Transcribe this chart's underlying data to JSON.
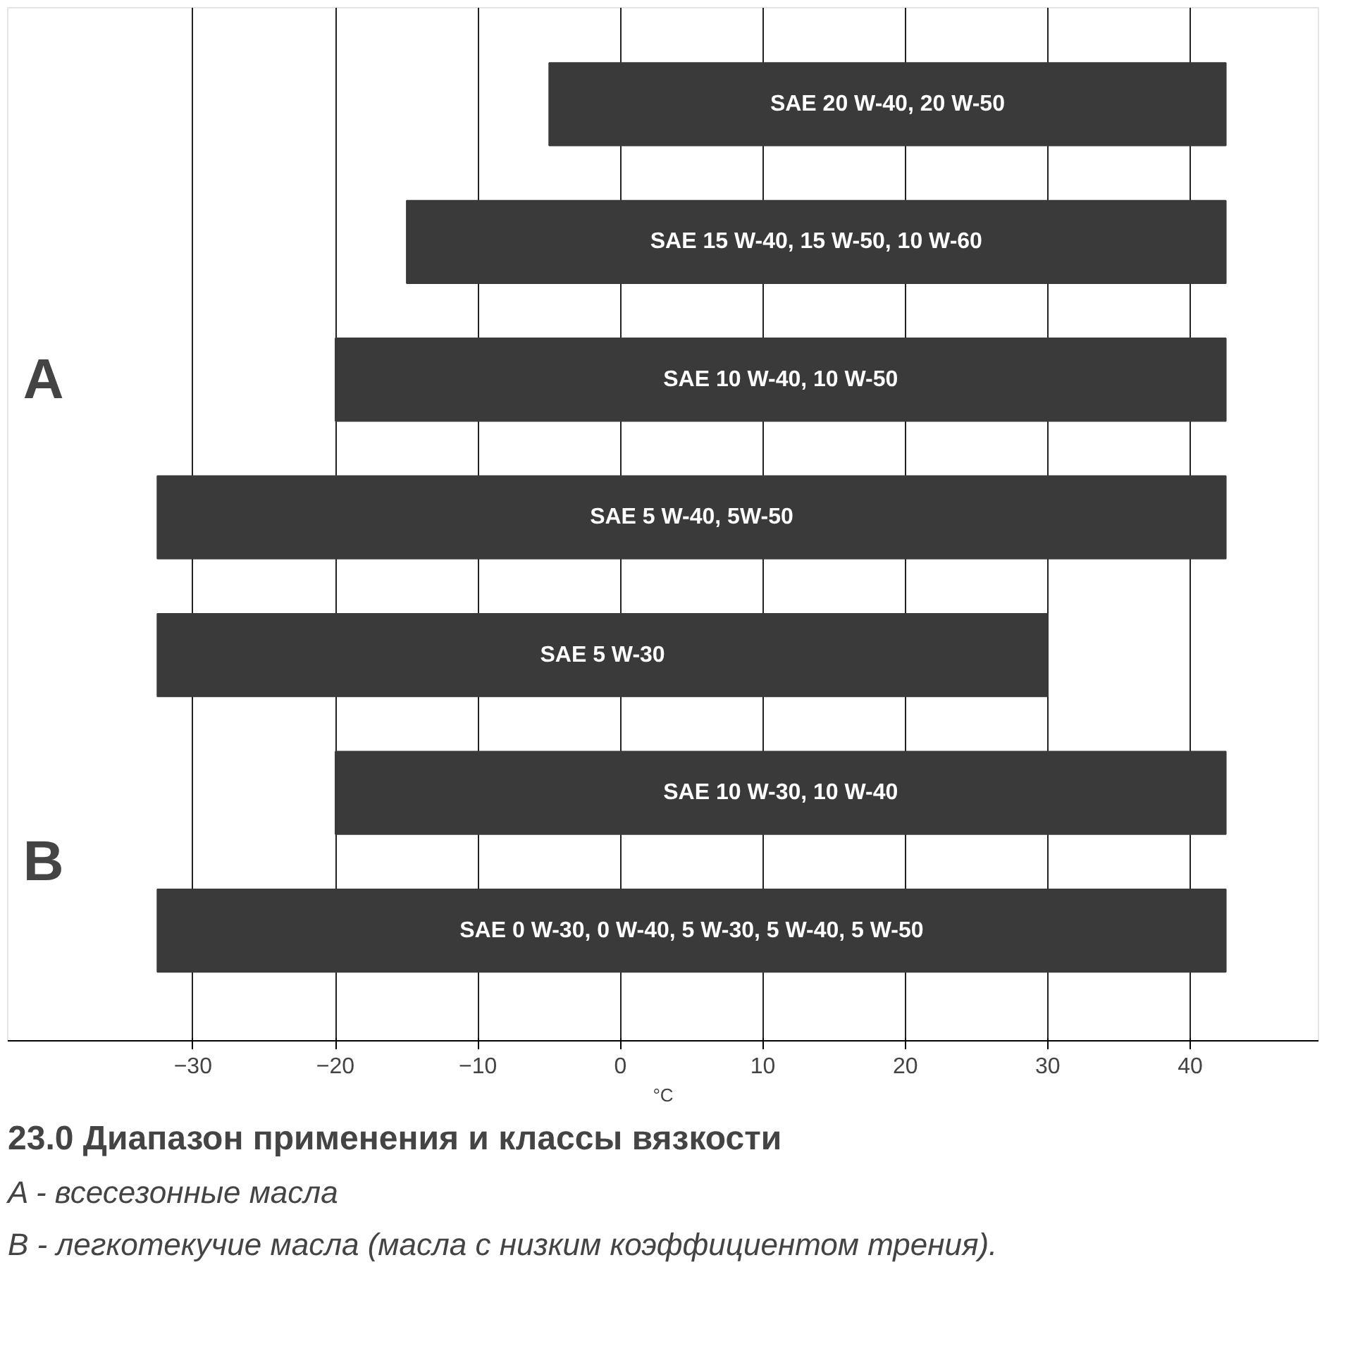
{
  "chart_data": {
    "type": "bar",
    "orientation": "horizontal",
    "title": "23.0 Диапазон применения и классы вязкости",
    "xlabel": "°C",
    "categories": [
      "SAE 20 W-40, 20 W-50",
      "SAE 15 W-40, 15 W-50, 10 W-60",
      "SAE 10 W-40, 10 W-50",
      "SAE 5 W-40, 5W-50",
      "SAE 5 W-30",
      "SAE 10 W-30, 10 W-40",
      "SAE 0 W-30, 0 W-40, 5 W-30, 5 W-40, 5 W-50"
    ],
    "base": [
      -5,
      -15,
      -20,
      -32.5,
      -32.5,
      -20,
      -32.5
    ],
    "values": [
      47.5,
      57.5,
      62.5,
      75,
      62.5,
      62.5,
      75
    ],
    "color": "#3a3a3a",
    "xlim": [
      -43,
      49
    ],
    "xticks": [
      -30,
      -20,
      -10,
      0,
      10,
      20,
      30,
      40
    ],
    "grid": "x",
    "annotations": [
      "A",
      "B",
      "A -  всесезонные масла",
      "B -  легкотекучие масла (масла с низким коэффициентом трения)."
    ]
  }
}
